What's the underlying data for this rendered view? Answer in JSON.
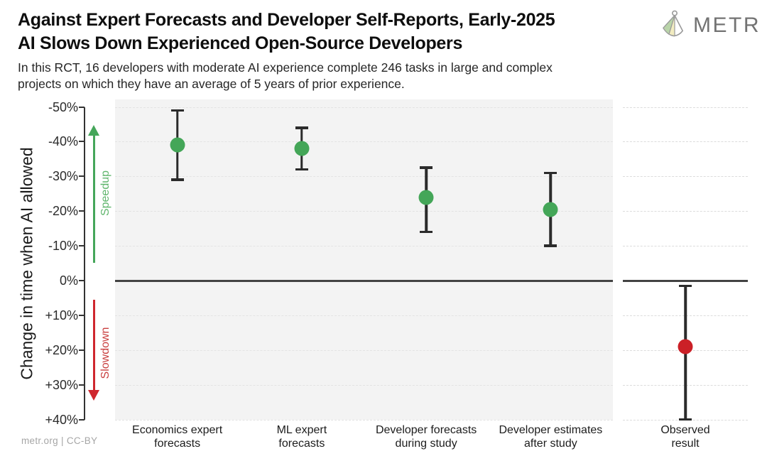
{
  "header": {
    "title_line1": "Against Expert Forecasts and Developer Self-Reports, Early-2025",
    "title_line2": "AI Slows Down Experienced Open-Source Developers",
    "subtitle_line1": "In this RCT, 16 developers with moderate AI experience complete 246 tasks in large and complex",
    "subtitle_line2": "projects on which they have an average of 5 years of prior experience.",
    "logo_text": "METR"
  },
  "footer": {
    "credit": "metr.org | CC-BY"
  },
  "chart_data": {
    "type": "scatter",
    "subtype": "point-estimates-with-error-bars",
    "title": "Against Expert Forecasts and Developer Self-Reports, Early-2025 AI Slows Down Experienced Open-Source Developers",
    "ylabel": "Change in time when AI allowed",
    "ylim": [
      -50,
      40
    ],
    "y_axis_inverted": true,
    "grid": "dashed-horizontal",
    "zero_line": 0,
    "y_ticks": [
      {
        "label": "-50%",
        "value": -50
      },
      {
        "label": "-40%",
        "value": -40
      },
      {
        "label": "-30%",
        "value": -30
      },
      {
        "label": "-20%",
        "value": -20
      },
      {
        "label": "-10%",
        "value": -10
      },
      {
        "label": "0%",
        "value": 0
      },
      {
        "label": "+10%",
        "value": 10
      },
      {
        "label": "+20%",
        "value": 20
      },
      {
        "label": "+30%",
        "value": 30
      },
      {
        "label": "+40%",
        "value": 40
      }
    ],
    "annotations": {
      "up": {
        "label": "Speedup",
        "arrow_color": "#45a65a",
        "label_color": "#5fb56c"
      },
      "down": {
        "label": "Slowdown",
        "arrow_color": "#cf272e",
        "label_color": "#c94040"
      }
    },
    "points": [
      {
        "panel": "forecasts",
        "label_lines": [
          "Economics expert",
          "forecasts"
        ],
        "value": -39,
        "ci": [
          -49,
          -29
        ],
        "color": "#44a658"
      },
      {
        "panel": "forecasts",
        "label_lines": [
          "ML expert",
          "forecasts"
        ],
        "value": -38,
        "ci": [
          -44,
          -32
        ],
        "color": "#44a658"
      },
      {
        "panel": "forecasts",
        "label_lines": [
          "Developer forecasts",
          "during study"
        ],
        "value": -24,
        "ci": [
          -32.5,
          -14
        ],
        "color": "#44a658"
      },
      {
        "panel": "forecasts",
        "label_lines": [
          "Developer estimates",
          "after study"
        ],
        "value": -20.5,
        "ci": [
          -31,
          -10
        ],
        "color": "#44a658"
      },
      {
        "panel": "observed",
        "label_lines": [
          "Observed",
          "result"
        ],
        "value": 19,
        "ci": [
          1.5,
          40
        ],
        "color": "#cb2027"
      }
    ],
    "colors": {
      "error_bar": "#2b2b2b",
      "zero_line": "#434343",
      "forecast_panel_bg": "#f3f3f3",
      "gridline": "#dcdcdc"
    }
  }
}
